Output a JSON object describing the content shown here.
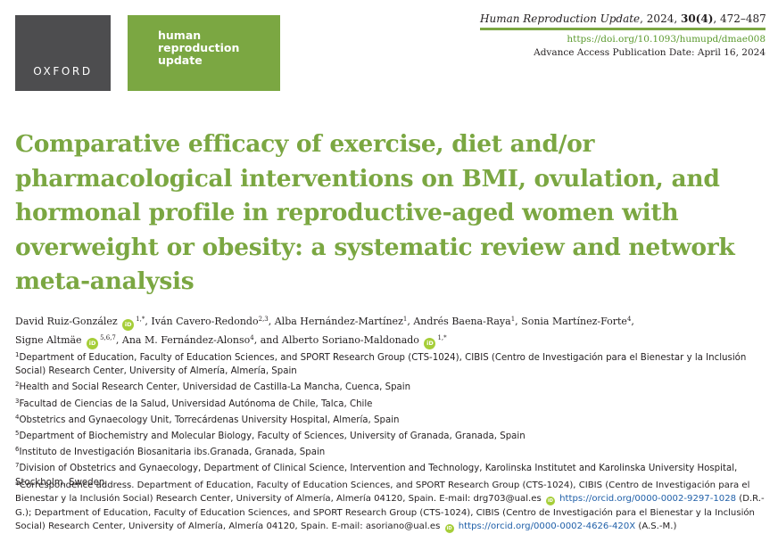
{
  "logos": {
    "oxford": "OXFORD",
    "journal": [
      "human",
      "reproduction",
      "update"
    ]
  },
  "citation": {
    "journal": "Human Reproduction Update",
    "year": ", 2024, ",
    "volume": "30(4)",
    "pages": ", 472–487",
    "doi": "https://doi.org/10.1093/humupd/dmae008",
    "advance": "Advance Access Publication Date: April 16, 2024"
  },
  "title": "Comparative efficacy of exercise, diet and/or pharmacological interventions on BMI, ovulation, and hormonal profile in reproductive-aged women with overweight or obesity: a systematic review and network meta-analysis",
  "authors": {
    "a1": "David Ruiz-González",
    "a1_sup": "1,*",
    "a2": ", Iván Cavero-Redondo",
    "a2_sup": "2,3",
    "a3": ", Alba Hernández-Martínez",
    "a3_sup": "1",
    "a4": ", Andrés Baena-Raya",
    "a4_sup": "1",
    "a5": ", Sonia Martínez-Forte",
    "a5_sup": "4",
    "a6": "Signe Altmäe",
    "a6_sup": "5,6,7",
    "a7": ", Ana M. Fernández-Alonso",
    "a7_sup": "4",
    "a8": ", and Alberto Soriano-Maldonado",
    "a8_sup": "1,*",
    "orcid_glyph": "iD"
  },
  "affiliations": [
    {
      "sup": "1",
      "text": "Department of Education, Faculty of Education Sciences, and SPORT Research Group (CTS-1024), CIBIS (Centro de Investigación para el Bienestar y la Inclusión Social) Research Center, University of Almería, Almería, Spain"
    },
    {
      "sup": "2",
      "text": "Health and Social Research Center, Universidad de Castilla-La Mancha, Cuenca, Spain"
    },
    {
      "sup": "3",
      "text": "Facultad de Ciencias de la Salud, Universidad Autónoma de Chile, Talca, Chile"
    },
    {
      "sup": "4",
      "text": "Obstetrics and Gynaecology Unit, Torrecárdenas University Hospital, Almería, Spain"
    },
    {
      "sup": "5",
      "text": "Department of Biochemistry and Molecular Biology, Faculty of Sciences, University of Granada, Granada, Spain"
    },
    {
      "sup": "6",
      "text": "Instituto de Investigación Biosanitaria ibs.Granada, Granada, Spain"
    },
    {
      "sup": "7",
      "text": "Division of Obstetrics and Gynaecology, Department of Clinical Science, Intervention and Technology, Karolinska Institutet and Karolinska University Hospital, Stockholm, Sweden"
    }
  ],
  "correspondence": {
    "part1": "*Correspondence address. Department of Education, Faculty of Education Sciences, and SPORT Research Group (CTS-1024), CIBIS (Centro de Investigación para el Bienestar y la Inclusión Social) Research Center, University of Almería, Almería 04120, Spain. E-mail: drg703@ual.es",
    "orcid1": "https://orcid.org/0000-0002-9297-1028",
    "part2": "(D.R.-G.); Department of Education, Faculty of Education Sciences, and SPORT Research Group (CTS-1024), CIBIS (Centro de Investigación para el Bienestar y la Inclusión Social) Research Center, University of Almería, Almería 04120, Spain. E-mail: asoriano@ual.es",
    "orcid2": "https://orcid.org/0000-0002-4626-420X",
    "part3": "(A.S.-M.)"
  },
  "colors": {
    "brand_green": "#7ba742",
    "oxford_gray": "#4d4d4f",
    "orcid_green": "#a6ce39",
    "link_blue": "#1f5fa8"
  }
}
